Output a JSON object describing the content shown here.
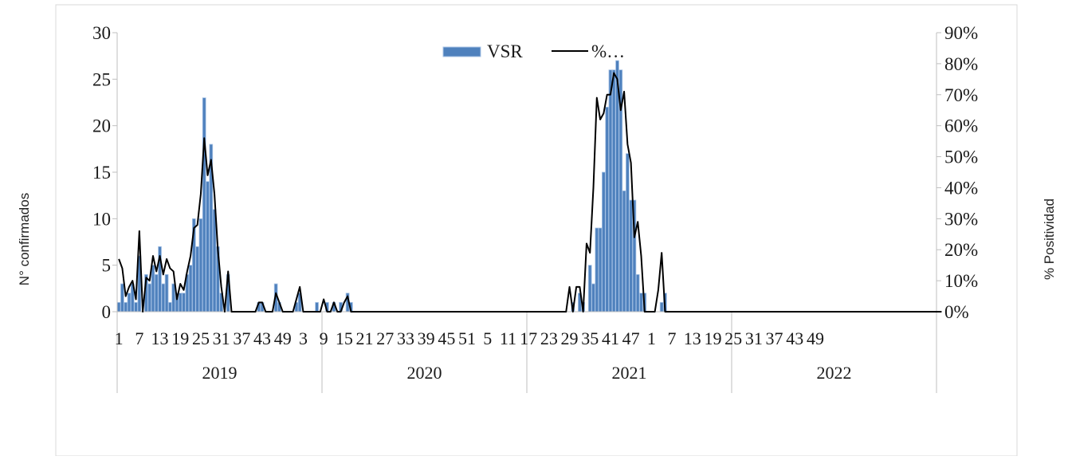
{
  "chart_data": {
    "type": "bar",
    "title": "",
    "ylabel": "N° confirmados",
    "y2label": "% Positividad",
    "ylim": [
      0,
      30
    ],
    "y_ticks": [
      "0",
      "5",
      "10",
      "15",
      "20",
      "25",
      "30"
    ],
    "y2lim": [
      0,
      90
    ],
    "y2_ticks": [
      "0%",
      "10%",
      "20%",
      "30%",
      "40%",
      "50%",
      "60%",
      "70%",
      "80%",
      "90%"
    ],
    "grid": false,
    "legend_position": "top-center",
    "colors": {
      "bars": "#4f81bd",
      "bar_edge": "#a9c4e6",
      "line": "#000000",
      "axis": "#bfbfbf"
    },
    "x_group_labels": [
      "2019",
      "2020",
      "2021",
      "2022"
    ],
    "x_tick_labels": [
      {
        "index": 0,
        "text": "1"
      },
      {
        "index": 6,
        "text": "7"
      },
      {
        "index": 12,
        "text": "13"
      },
      {
        "index": 18,
        "text": "19"
      },
      {
        "index": 24,
        "text": "25"
      },
      {
        "index": 30,
        "text": "31"
      },
      {
        "index": 36,
        "text": "37"
      },
      {
        "index": 42,
        "text": "43"
      },
      {
        "index": 48,
        "text": "49"
      },
      {
        "index": 54,
        "text": "3"
      },
      {
        "index": 60,
        "text": "9"
      },
      {
        "index": 66,
        "text": "15"
      },
      {
        "index": 72,
        "text": "21"
      },
      {
        "index": 78,
        "text": "27"
      },
      {
        "index": 84,
        "text": "33"
      },
      {
        "index": 90,
        "text": "39"
      },
      {
        "index": 96,
        "text": "45"
      },
      {
        "index": 102,
        "text": "51"
      },
      {
        "index": 108,
        "text": "5"
      },
      {
        "index": 114,
        "text": "11"
      },
      {
        "index": 120,
        "text": "17"
      },
      {
        "index": 126,
        "text": "23"
      },
      {
        "index": 132,
        "text": "29"
      },
      {
        "index": 138,
        "text": "35"
      },
      {
        "index": 144,
        "text": "41"
      },
      {
        "index": 150,
        "text": "47"
      },
      {
        "index": 156,
        "text": "1"
      },
      {
        "index": 162,
        "text": "7"
      },
      {
        "index": 168,
        "text": "13"
      },
      {
        "index": 174,
        "text": "19"
      },
      {
        "index": 180,
        "text": "25"
      },
      {
        "index": 186,
        "text": "31"
      },
      {
        "index": 192,
        "text": "37"
      },
      {
        "index": 198,
        "text": "43"
      },
      {
        "index": 204,
        "text": "49"
      }
    ],
    "series": [
      {
        "name": "VSR",
        "type": "bar",
        "axis": "left",
        "values": [
          1,
          3,
          1,
          2,
          3,
          1,
          6,
          0,
          4,
          3,
          5,
          4,
          7,
          3,
          4,
          1,
          3,
          2,
          2,
          2,
          4,
          5,
          10,
          7,
          10,
          23,
          14,
          18,
          11,
          7,
          2,
          0,
          4,
          0,
          0,
          0,
          0,
          0,
          0,
          0,
          0,
          1,
          1,
          0,
          0,
          0,
          3,
          1,
          0,
          0,
          0,
          0,
          1,
          2,
          0,
          0,
          0,
          0,
          1,
          0,
          0,
          1,
          0,
          0,
          0,
          1,
          0,
          0,
          1,
          0,
          0,
          0,
          0,
          0,
          0,
          0,
          0,
          0,
          0,
          0,
          0,
          0,
          0,
          0,
          0,
          0,
          0,
          0,
          0,
          0,
          0,
          0,
          0,
          0,
          0,
          0,
          0,
          0,
          0,
          0,
          0,
          0,
          0,
          0,
          0,
          0,
          0,
          0,
          0,
          0,
          0,
          0,
          0,
          0,
          0,
          0,
          0,
          0,
          0,
          0,
          0,
          0,
          0,
          0,
          0,
          0,
          0,
          0,
          0,
          0,
          0,
          0,
          0,
          0,
          0,
          0,
          0,
          0,
          0,
          0,
          0,
          0,
          0,
          0,
          0,
          0,
          0,
          0,
          0,
          0,
          0,
          0,
          0,
          0,
          0,
          0,
          0,
          0,
          0,
          0,
          0,
          0,
          0,
          0,
          0,
          0,
          0,
          0,
          0,
          0,
          0,
          0,
          0,
          0,
          0,
          0,
          0,
          0,
          0,
          0,
          0,
          0,
          0,
          0,
          0,
          0,
          0,
          0,
          0,
          0,
          0,
          0,
          0,
          0,
          0,
          0,
          0,
          0,
          0,
          0,
          0,
          0,
          0,
          0,
          0,
          0,
          0,
          0,
          0,
          0,
          0,
          0,
          0,
          0,
          0,
          0,
          0,
          0,
          0,
          0,
          0,
          0,
          0,
          0,
          0,
          0,
          0,
          0,
          0,
          0,
          0,
          0,
          0,
          0,
          0,
          0,
          0,
          0,
          0,
          0
        ]
      },
      {
        "name": "%…",
        "type": "line",
        "axis": "right",
        "values": [
          17,
          14,
          5,
          8,
          10,
          4,
          26,
          0,
          11,
          10,
          18,
          13,
          18,
          12,
          17,
          14,
          13,
          4,
          9,
          7,
          13,
          18,
          27,
          28,
          38,
          56,
          44,
          49,
          38,
          20,
          8,
          0,
          13,
          0,
          0,
          0,
          0,
          0,
          0,
          0,
          0,
          3,
          3,
          0,
          0,
          0,
          6,
          3,
          0,
          0,
          0,
          0,
          4,
          8,
          0,
          0,
          0,
          0,
          0,
          0,
          0,
          0,
          0,
          0,
          0,
          0,
          0,
          0,
          0,
          0,
          0,
          0,
          0,
          0,
          0,
          0,
          0,
          0,
          0,
          0,
          0,
          0,
          0,
          0,
          0,
          0,
          0,
          0,
          0,
          0,
          0,
          0,
          0,
          0,
          0,
          0,
          0,
          0,
          0,
          0,
          0,
          0,
          0,
          0,
          0,
          0,
          0,
          0,
          0,
          0,
          0,
          0,
          0,
          0,
          0,
          0,
          0,
          0,
          0,
          0,
          0,
          0,
          0,
          0,
          0,
          0,
          0,
          0,
          0,
          0,
          0,
          0,
          0,
          0,
          0,
          0,
          0,
          0,
          0,
          0,
          0,
          0,
          0,
          0,
          0,
          0,
          0,
          0,
          0,
          0,
          0,
          0,
          0,
          0,
          0,
          0,
          0,
          0,
          0,
          0,
          0,
          0,
          0,
          0,
          0,
          0,
          0,
          0,
          0,
          0,
          0,
          0,
          0,
          0,
          0,
          0,
          0,
          0,
          0,
          0,
          0,
          0,
          0,
          0,
          0,
          0,
          0,
          0,
          0,
          0,
          0,
          0,
          0,
          0,
          0,
          0,
          0,
          0,
          0,
          0,
          0,
          0,
          0,
          0,
          0,
          0,
          0,
          0,
          0,
          0,
          0,
          0,
          0,
          0,
          0,
          0,
          0,
          0,
          0,
          0,
          0,
          0,
          0,
          0,
          0,
          0,
          0,
          0,
          0,
          0,
          0,
          0,
          0,
          0,
          0,
          0,
          0,
          0,
          0,
          0,
          0,
          0
        ]
      }
    ],
    "patches": {
      "VSR": [
        {
          "i": 63,
          "v": 1
        },
        {
          "i": 67,
          "v": 2
        },
        {
          "i": 133,
          "v": 1
        },
        {
          "i": 135,
          "v": 2
        },
        {
          "i": 136,
          "v": 1
        },
        {
          "i": 138,
          "v": 5
        },
        {
          "i": 139,
          "v": 3
        },
        {
          "i": 140,
          "v": 9
        },
        {
          "i": 141,
          "v": 9
        },
        {
          "i": 142,
          "v": 15
        },
        {
          "i": 143,
          "v": 22
        },
        {
          "i": 144,
          "v": 26
        },
        {
          "i": 145,
          "v": 26
        },
        {
          "i": 146,
          "v": 27
        },
        {
          "i": 147,
          "v": 26
        },
        {
          "i": 148,
          "v": 13
        },
        {
          "i": 149,
          "v": 17
        },
        {
          "i": 150,
          "v": 12
        },
        {
          "i": 151,
          "v": 12
        },
        {
          "i": 152,
          "v": 4
        },
        {
          "i": 153,
          "v": 2
        },
        {
          "i": 154,
          "v": 2
        },
        {
          "i": 159,
          "v": 1
        },
        {
          "i": 160,
          "v": 2
        }
      ],
      "%…": [
        {
          "i": 60,
          "v": 4
        },
        {
          "i": 63,
          "v": 3
        },
        {
          "i": 66,
          "v": 3
        },
        {
          "i": 67,
          "v": 5
        },
        {
          "i": 132,
          "v": 8
        },
        {
          "i": 133,
          "v": 0
        },
        {
          "i": 134,
          "v": 8
        },
        {
          "i": 135,
          "v": 8
        },
        {
          "i": 136,
          "v": 0
        },
        {
          "i": 137,
          "v": 22
        },
        {
          "i": 138,
          "v": 19
        },
        {
          "i": 139,
          "v": 40
        },
        {
          "i": 140,
          "v": 69
        },
        {
          "i": 141,
          "v": 62
        },
        {
          "i": 142,
          "v": 64
        },
        {
          "i": 143,
          "v": 70
        },
        {
          "i": 144,
          "v": 70
        },
        {
          "i": 145,
          "v": 77
        },
        {
          "i": 146,
          "v": 75
        },
        {
          "i": 147,
          "v": 65
        },
        {
          "i": 148,
          "v": 71
        },
        {
          "i": 149,
          "v": 54
        },
        {
          "i": 150,
          "v": 48
        },
        {
          "i": 151,
          "v": 24
        },
        {
          "i": 152,
          "v": 29
        },
        {
          "i": 153,
          "v": 18
        },
        {
          "i": 154,
          "v": 0
        },
        {
          "i": 158,
          "v": 7
        },
        {
          "i": 159,
          "v": 19
        },
        {
          "i": 160,
          "v": 0
        }
      ]
    }
  }
}
